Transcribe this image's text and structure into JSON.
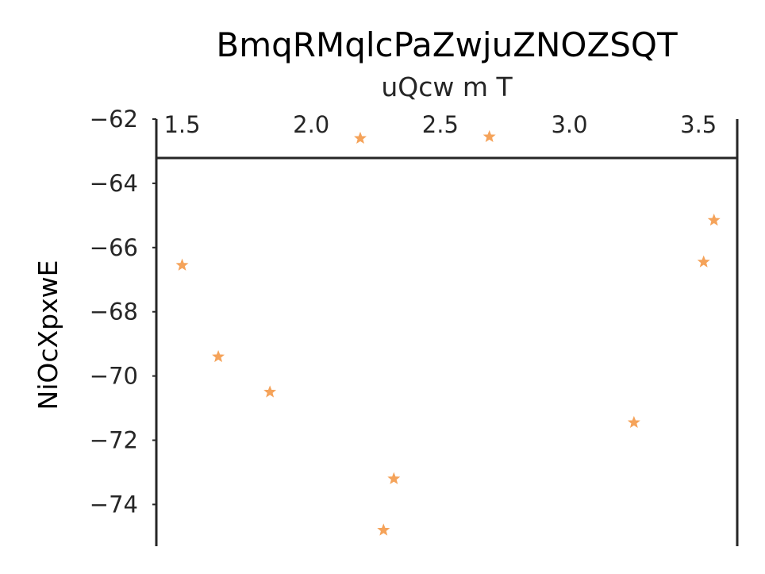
{
  "chart_data": {
    "type": "scatter",
    "title": "BmqRMqlcPaZwjuZNOZSQT",
    "xlabel": "uQcw m T",
    "ylabel": "NiOcXpxwE",
    "xlim": [
      1.4,
      3.65
    ],
    "ylim": [
      -75.3,
      -62.0
    ],
    "x_axis_position": "top",
    "y_axis_inverted": false,
    "grid": false,
    "legend": "none",
    "marker": "star",
    "color": "#f5a35a",
    "xticks": [
      "1.5",
      "2.0",
      "2.5",
      "3.0",
      "3.5"
    ],
    "yticks": [
      "−62",
      "−64",
      "−66",
      "−68",
      "−70",
      "−72",
      "−74"
    ],
    "points": [
      {
        "x": 1.5,
        "y": -66.55
      },
      {
        "x": 1.64,
        "y": -69.4
      },
      {
        "x": 1.84,
        "y": -70.5
      },
      {
        "x": 2.19,
        "y": -62.6
      },
      {
        "x": 2.28,
        "y": -74.8
      },
      {
        "x": 2.32,
        "y": -73.2
      },
      {
        "x": 2.69,
        "y": -62.55
      },
      {
        "x": 3.25,
        "y": -71.45
      },
      {
        "x": 3.52,
        "y": -66.45
      },
      {
        "x": 3.56,
        "y": -65.15
      }
    ]
  }
}
